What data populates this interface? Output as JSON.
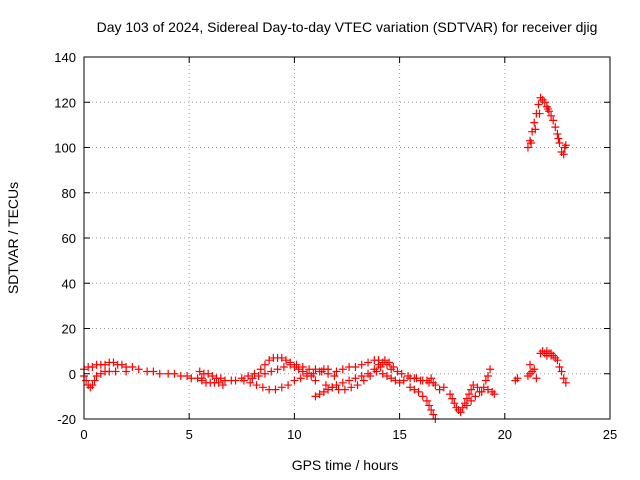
{
  "chart_data": {
    "type": "scatter",
    "title": "Day 103 of 2024, Sidereal Day-to-day VTEC variation (SDTVAR) for receiver djig",
    "xlabel": "GPS time / hours",
    "ylabel": "SDTVAR / TECUs",
    "xlim": [
      0,
      25
    ],
    "ylim": [
      -20,
      140
    ],
    "xticks": [
      0,
      5,
      10,
      15,
      20,
      25
    ],
    "yticks": [
      -20,
      0,
      20,
      40,
      60,
      80,
      100,
      120,
      140
    ],
    "grid": true,
    "marker": "plus",
    "color": "#ff0000",
    "series": [
      {
        "name": "",
        "points": [
          [
            0.0,
            -1
          ],
          [
            0.1,
            -3
          ],
          [
            0.2,
            -5
          ],
          [
            0.3,
            -6
          ],
          [
            0.4,
            -5
          ],
          [
            0.5,
            -3
          ],
          [
            0.6,
            -1
          ],
          [
            0.8,
            0
          ],
          [
            1.0,
            1
          ],
          [
            1.2,
            1
          ],
          [
            1.5,
            1
          ],
          [
            2.0,
            1
          ],
          [
            0.0,
            2
          ],
          [
            0.2,
            3
          ],
          [
            0.4,
            3
          ],
          [
            0.6,
            4
          ],
          [
            0.8,
            4
          ],
          [
            1.0,
            4
          ],
          [
            1.2,
            5
          ],
          [
            1.4,
            5
          ],
          [
            1.6,
            4
          ],
          [
            1.8,
            4
          ],
          [
            2.0,
            3
          ],
          [
            2.3,
            3
          ],
          [
            2.6,
            2
          ],
          [
            3.0,
            1
          ],
          [
            3.3,
            1
          ],
          [
            3.6,
            0
          ],
          [
            4.0,
            0
          ],
          [
            4.3,
            0
          ],
          [
            4.6,
            -1
          ],
          [
            4.9,
            -1
          ],
          [
            5.1,
            -2
          ],
          [
            5.4,
            -2
          ],
          [
            5.6,
            -2
          ],
          [
            5.5,
            1
          ],
          [
            5.7,
            0
          ],
          [
            5.9,
            0
          ],
          [
            6.1,
            -1
          ],
          [
            6.3,
            -2
          ],
          [
            6.5,
            -2
          ],
          [
            6.7,
            -3
          ],
          [
            5.6,
            -3
          ],
          [
            5.8,
            -4
          ],
          [
            6.0,
            -4
          ],
          [
            6.2,
            -4
          ],
          [
            6.4,
            -4
          ],
          [
            6.6,
            -5
          ],
          [
            7.0,
            -3
          ],
          [
            7.2,
            -3
          ],
          [
            7.5,
            -2
          ],
          [
            7.8,
            -1
          ],
          [
            8.1,
            0
          ],
          [
            8.4,
            2
          ],
          [
            8.6,
            4
          ],
          [
            8.8,
            6
          ],
          [
            9.0,
            7
          ],
          [
            9.2,
            7
          ],
          [
            9.4,
            7
          ],
          [
            9.6,
            6
          ],
          [
            9.8,
            5
          ],
          [
            10.0,
            3
          ],
          [
            10.2,
            2
          ],
          [
            10.4,
            1
          ],
          [
            10.6,
            0
          ],
          [
            10.8,
            -1
          ],
          [
            11.0,
            -3
          ],
          [
            7.6,
            -3
          ],
          [
            7.9,
            -4
          ],
          [
            8.2,
            -5
          ],
          [
            8.5,
            -6
          ],
          [
            8.8,
            -7
          ],
          [
            9.1,
            -7
          ],
          [
            9.4,
            -6
          ],
          [
            9.7,
            -5
          ],
          [
            10.0,
            -3
          ],
          [
            10.3,
            -2
          ],
          [
            10.6,
            -1
          ],
          [
            10.9,
            0
          ],
          [
            11.2,
            1
          ],
          [
            11.4,
            2
          ],
          [
            11.6,
            2
          ],
          [
            8.0,
            -2
          ],
          [
            8.3,
            -1
          ],
          [
            8.6,
            0
          ],
          [
            8.9,
            1
          ],
          [
            9.2,
            2
          ],
          [
            9.5,
            3
          ],
          [
            9.8,
            4
          ],
          [
            10.1,
            4
          ],
          [
            10.4,
            3
          ],
          [
            10.7,
            2
          ],
          [
            11.0,
            2
          ],
          [
            11.3,
            1
          ],
          [
            11.6,
            0
          ],
          [
            11.9,
            -1
          ],
          [
            11.0,
            -10
          ],
          [
            11.2,
            -9
          ],
          [
            11.4,
            -8
          ],
          [
            11.6,
            -7
          ],
          [
            11.8,
            -6
          ],
          [
            12.0,
            -5
          ],
          [
            12.3,
            -4
          ],
          [
            12.6,
            -3
          ],
          [
            12.9,
            -2
          ],
          [
            13.2,
            -1
          ],
          [
            13.5,
            0
          ],
          [
            13.8,
            2
          ],
          [
            14.0,
            4
          ],
          [
            14.2,
            5
          ],
          [
            14.4,
            4
          ],
          [
            14.6,
            2
          ],
          [
            11.5,
            -5
          ],
          [
            11.8,
            -6
          ],
          [
            12.1,
            -7
          ],
          [
            12.4,
            -7
          ],
          [
            12.7,
            -6
          ],
          [
            13.0,
            -5
          ],
          [
            13.3,
            -3
          ],
          [
            13.6,
            -1
          ],
          [
            13.9,
            1
          ],
          [
            14.1,
            3
          ],
          [
            12.0,
            1
          ],
          [
            12.3,
            2
          ],
          [
            12.6,
            3
          ],
          [
            12.9,
            3
          ],
          [
            13.2,
            4
          ],
          [
            13.5,
            5
          ],
          [
            13.8,
            6
          ],
          [
            14.0,
            6
          ],
          [
            14.3,
            6
          ],
          [
            14.5,
            5
          ],
          [
            14.7,
            3
          ],
          [
            14.9,
            1
          ],
          [
            15.1,
            0
          ],
          [
            15.4,
            -1
          ],
          [
            15.7,
            -2
          ],
          [
            16.0,
            -3
          ],
          [
            16.3,
            -3
          ],
          [
            16.6,
            -4
          ],
          [
            14.2,
            0
          ],
          [
            14.4,
            -1
          ],
          [
            14.6,
            -2
          ],
          [
            14.8,
            -3
          ],
          [
            15.0,
            -4
          ],
          [
            15.2,
            -3
          ],
          [
            15.5,
            -2
          ],
          [
            15.8,
            -2
          ],
          [
            16.1,
            -3
          ],
          [
            16.4,
            -4
          ],
          [
            15.5,
            -6
          ],
          [
            15.7,
            -7
          ],
          [
            15.9,
            -8
          ],
          [
            16.1,
            -10
          ],
          [
            16.3,
            -12
          ],
          [
            16.4,
            -14
          ],
          [
            16.5,
            -16
          ],
          [
            16.6,
            -18
          ],
          [
            16.7,
            -20
          ],
          [
            16.5,
            -2
          ],
          [
            16.7,
            -5
          ],
          [
            16.9,
            -7
          ],
          [
            17.1,
            -6
          ],
          [
            17.4,
            -9
          ],
          [
            17.5,
            -11
          ],
          [
            17.6,
            -13
          ],
          [
            17.7,
            -15
          ],
          [
            17.8,
            -16
          ],
          [
            17.9,
            -17
          ],
          [
            18.0,
            -15
          ],
          [
            18.1,
            -13
          ],
          [
            18.2,
            -11
          ],
          [
            18.3,
            -9
          ],
          [
            18.4,
            -7
          ],
          [
            18.5,
            -5
          ],
          [
            18.2,
            -14
          ],
          [
            18.4,
            -12
          ],
          [
            18.6,
            -10
          ],
          [
            18.8,
            -8
          ],
          [
            19.0,
            -6
          ],
          [
            19.1,
            -3
          ],
          [
            19.2,
            -1
          ],
          [
            19.3,
            2
          ],
          [
            19.2,
            -7
          ],
          [
            19.4,
            -8
          ],
          [
            19.5,
            -9
          ],
          [
            18.7,
            -6
          ],
          [
            18.9,
            -8
          ],
          [
            20.5,
            -3
          ],
          [
            20.6,
            -2
          ],
          [
            21.1,
            -1
          ],
          [
            21.2,
            0
          ],
          [
            21.3,
            1
          ],
          [
            21.4,
            2
          ],
          [
            21.2,
            4
          ],
          [
            21.5,
            -2
          ],
          [
            21.1,
            100
          ],
          [
            21.2,
            103
          ],
          [
            21.3,
            107
          ],
          [
            21.4,
            111
          ],
          [
            21.5,
            115
          ],
          [
            21.6,
            119
          ],
          [
            21.7,
            122
          ],
          [
            21.8,
            121
          ],
          [
            21.9,
            120
          ],
          [
            22.0,
            118
          ],
          [
            22.1,
            116
          ],
          [
            22.2,
            114
          ],
          [
            22.3,
            112
          ],
          [
            22.4,
            109
          ],
          [
            22.5,
            106
          ],
          [
            22.6,
            102
          ],
          [
            22.7,
            98
          ],
          [
            22.8,
            97
          ],
          [
            22.85,
            100
          ],
          [
            22.9,
            101
          ],
          [
            21.25,
            102
          ],
          [
            21.45,
            108
          ],
          [
            21.65,
            115
          ],
          [
            22.05,
            117
          ],
          [
            22.55,
            104
          ],
          [
            21.7,
            9
          ],
          [
            21.8,
            10
          ],
          [
            21.9,
            9
          ],
          [
            22.0,
            8
          ],
          [
            22.1,
            9
          ],
          [
            22.2,
            8
          ],
          [
            22.3,
            8
          ],
          [
            22.4,
            7
          ],
          [
            22.5,
            6
          ],
          [
            22.6,
            3
          ],
          [
            22.7,
            1
          ],
          [
            22.8,
            -2
          ],
          [
            22.9,
            -4
          ],
          [
            22.0,
            10
          ],
          [
            22.2,
            9
          ]
        ]
      }
    ]
  }
}
